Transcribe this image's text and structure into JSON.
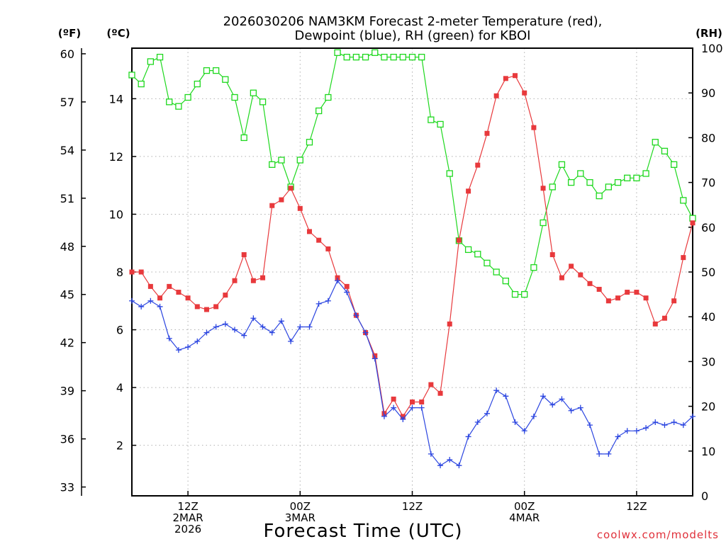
{
  "chart_data": {
    "type": "line",
    "title_line1": "2026030206 NAM3KM Forecast 2-meter Temperature (red),",
    "title_line2": "Dewpoint (blue), RH (green) for KBOI",
    "xlabel": "Forecast Time (UTC)",
    "credit": "coolwx.com/modelts",
    "units": {
      "fahrenheit": "(ºF)",
      "celsius": "(ºC)",
      "rh": "(RH)"
    },
    "colors": {
      "temperature": "#e8393c",
      "dewpoint": "#2b45e0",
      "rh": "#1ed81e",
      "grid": "#b0b0b0",
      "axis": "#000000"
    },
    "x_range_hours": [
      0,
      60
    ],
    "x_step_hours": 1,
    "celsius_range": [
      0.25,
      15.75
    ],
    "fahrenheit_range": [
      32.45,
      60.35
    ],
    "rh_range": [
      0,
      100
    ],
    "y_ticks_celsius": [
      "2",
      "4",
      "6",
      "8",
      "10",
      "12",
      "14"
    ],
    "y_ticks_fahrenheit": [
      "33",
      "36",
      "39",
      "42",
      "45",
      "48",
      "51",
      "54",
      "57",
      "60"
    ],
    "y_ticks_rh": [
      "0",
      "10",
      "20",
      "30",
      "40",
      "50",
      "60",
      "70",
      "80",
      "90",
      "100"
    ],
    "x_ticks": [
      {
        "hour": 6,
        "lines": [
          "12Z",
          "2MAR",
          "2026"
        ]
      },
      {
        "hour": 18,
        "lines": [
          "00Z",
          "3MAR"
        ]
      },
      {
        "hour": 30,
        "lines": [
          "12Z"
        ]
      },
      {
        "hour": 42,
        "lines": [
          "00Z",
          "4MAR"
        ]
      },
      {
        "hour": 54,
        "lines": [
          "12Z"
        ]
      }
    ],
    "series": [
      {
        "name": "Temperature",
        "unit": "C",
        "values": [
          8.0,
          8.0,
          7.5,
          7.1,
          7.5,
          7.3,
          7.1,
          6.8,
          6.7,
          6.8,
          7.2,
          7.7,
          8.6,
          7.7,
          7.8,
          10.3,
          10.5,
          10.9,
          10.2,
          9.4,
          9.1,
          8.8,
          7.8,
          7.5,
          6.5,
          5.9,
          5.1,
          3.1,
          3.6,
          3.0,
          3.5,
          3.5,
          4.1,
          3.8,
          6.2,
          9.1,
          10.8,
          11.7,
          12.8,
          14.1,
          14.7,
          14.8,
          14.2,
          13.0,
          10.9,
          8.6,
          7.8,
          8.2,
          7.9,
          7.6,
          7.4,
          7.0,
          7.1,
          7.3,
          7.3,
          7.1,
          6.2,
          6.4,
          7.0,
          8.5,
          9.7
        ]
      },
      {
        "name": "Dewpoint",
        "unit": "C",
        "values": [
          7.0,
          6.8,
          7.0,
          6.8,
          5.7,
          5.3,
          5.4,
          5.6,
          5.9,
          6.1,
          6.2,
          6.0,
          5.8,
          6.4,
          6.1,
          5.9,
          6.3,
          5.6,
          6.1,
          6.1,
          6.9,
          7.0,
          7.7,
          7.3,
          6.5,
          5.9,
          5.0,
          3.0,
          3.3,
          2.9,
          3.3,
          3.3,
          1.7,
          1.3,
          1.5,
          1.3,
          2.3,
          2.8,
          3.1,
          3.9,
          3.7,
          2.8,
          2.5,
          3.0,
          3.7,
          3.4,
          3.6,
          3.2,
          3.3,
          2.7,
          1.7,
          1.7,
          2.3,
          2.5,
          2.5,
          2.6,
          2.8,
          2.7,
          2.8,
          2.7,
          3.0
        ]
      },
      {
        "name": "RH",
        "unit": "%",
        "values": [
          94,
          92,
          97,
          98,
          88,
          87,
          89,
          92,
          95,
          95,
          93,
          89,
          80,
          90,
          88,
          74,
          75,
          69,
          75,
          79,
          86,
          89,
          99,
          98,
          98,
          98,
          99,
          98,
          98,
          98,
          98,
          98,
          84,
          83,
          72,
          57,
          55,
          54,
          52,
          50,
          48,
          45,
          45,
          51,
          61,
          69,
          74,
          70,
          72,
          70,
          67,
          69,
          70,
          71,
          71,
          72,
          79,
          77,
          74,
          66,
          62
        ]
      }
    ]
  }
}
